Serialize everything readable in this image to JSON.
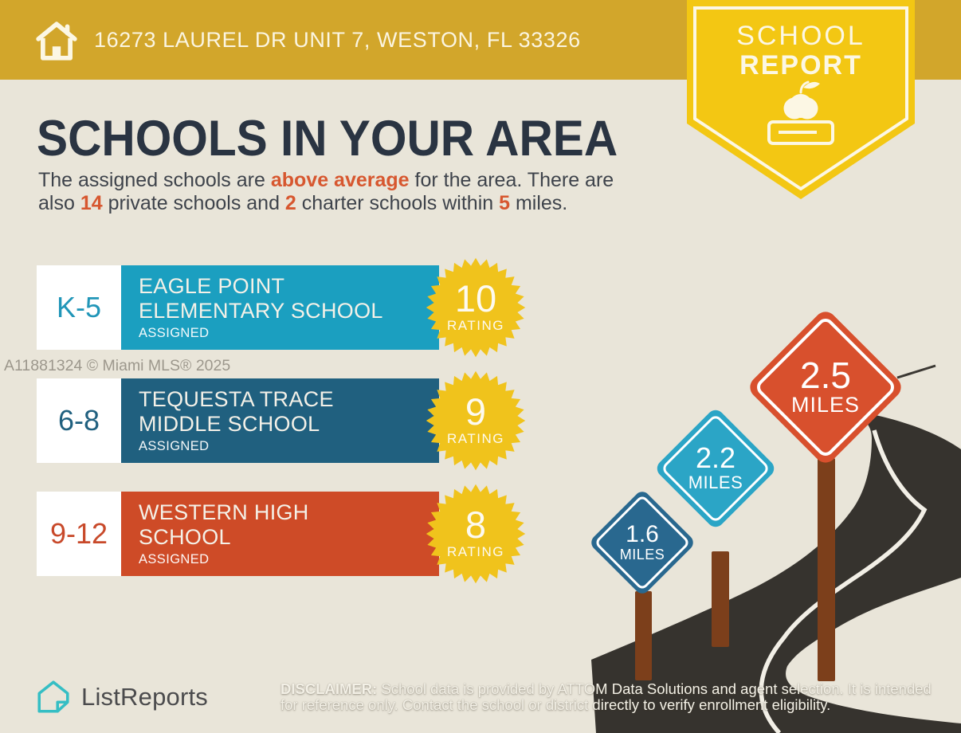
{
  "banner": {
    "address": "16273 LAUREL DR UNIT 7, WESTON, FL 33326",
    "background": "#D2A62B"
  },
  "badge": {
    "line1": "SCHOOL",
    "line2": "REPORT",
    "background": "#F3C713"
  },
  "heading": "SCHOOLS IN YOUR AREA",
  "intro": {
    "seg1": "The assigned schools are ",
    "hl1": "above average",
    "seg2": " for the area. There are",
    "seg3": "also ",
    "hl2": "14",
    "seg4": " private schools and ",
    "hl3": "2",
    "seg5": " charter schools within ",
    "hl4": "5",
    "seg6": " miles."
  },
  "watermark": "A11881324 © Miami MLS® 2025",
  "schools": [
    {
      "grade": "K-5",
      "grade_color": "#2196B8",
      "name_line1": "EAGLE POINT",
      "name_line2": "ELEMENTARY SCHOOL",
      "status": "ASSIGNED",
      "rating": "10",
      "rating_label": "RATING",
      "color": "#1B9FC0"
    },
    {
      "grade": "6-8",
      "grade_color": "#20607F",
      "name_line1": "TEQUESTA TRACE",
      "name_line2": "MIDDLE SCHOOL",
      "status": "ASSIGNED",
      "rating": "9",
      "rating_label": "RATING",
      "color": "#20607F"
    },
    {
      "grade": "9-12",
      "grade_color": "#C8492A",
      "name_line1": "WESTERN HIGH",
      "name_line2": "SCHOOL",
      "status": "ASSIGNED",
      "rating": "8",
      "rating_label": "RATING",
      "color": "#CE4B27"
    }
  ],
  "signs": [
    {
      "distance": "1.6",
      "unit": "MILES",
      "color": "#29688F"
    },
    {
      "distance": "2.2",
      "unit": "MILES",
      "color": "#2BA5C6"
    },
    {
      "distance": "2.5",
      "unit": "MILES",
      "color": "#D8502D"
    }
  ],
  "footer": {
    "logo_text": "ListReports",
    "disclaimer_label": "DISCLAIMER:",
    "disclaimer_line1": " School data is provided by ATTOM Data Solutions and agent selection. It is intended",
    "disclaimer_line2": "for reference only. Contact the school or district directly to verify enrollment eligibility."
  },
  "colors": {
    "background": "#E9E5D9",
    "accent_text": "#D7572F",
    "heading_text": "#2A3442",
    "starburst": "#F0C31C",
    "road": "#36332E",
    "road_line": "#F2EFE6",
    "post_brown": "#7C3F1B",
    "logo_teal": "#35BEC4"
  }
}
